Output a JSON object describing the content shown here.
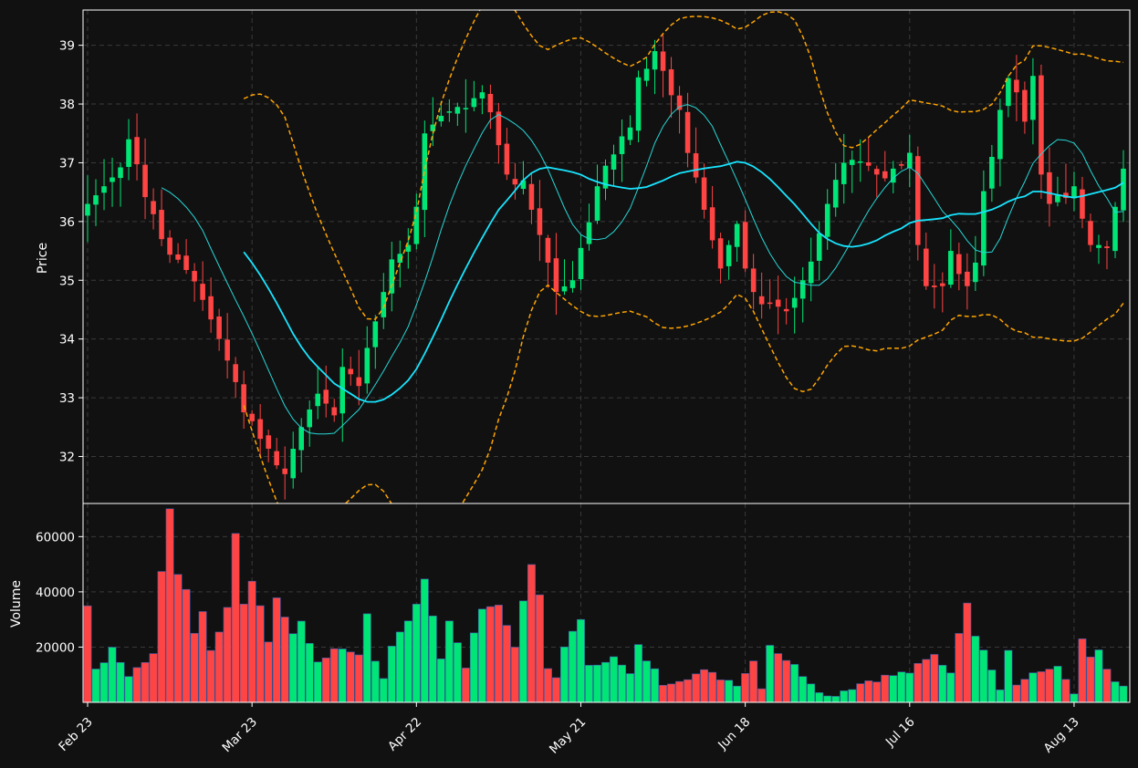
{
  "chart_data": {
    "type": "candlestick",
    "price_panel": {
      "ylabel": "Price",
      "yticks": [
        32,
        33,
        34,
        35,
        36,
        37,
        38,
        39
      ],
      "ylim": [
        31.2,
        39.6
      ]
    },
    "volume_panel": {
      "ylabel": "Volume",
      "yticks": [
        20000,
        40000,
        60000
      ],
      "ylim": [
        0,
        72000
      ]
    },
    "xaxis": {
      "tick_labels": [
        "Feb 23",
        "Mar 23",
        "Apr 22",
        "May 21",
        "Jun 18",
        "Jul 16",
        "Aug 13"
      ],
      "tick_index": [
        0,
        20,
        40,
        60,
        80,
        100,
        120
      ],
      "bar_count": 127
    },
    "colors": {
      "background": "#111111",
      "up": "#00e676",
      "down": "#ff4444",
      "ma_fast": "#26d7d7",
      "ma_slow": "#18e5ff",
      "bollinger": "#ffa500",
      "grid": "#3a3a3a"
    },
    "grid": true,
    "overlays": [
      "ma_fast",
      "ma_slow",
      "bollinger_upper",
      "bollinger_lower"
    ],
    "close_anchors": [
      [
        0,
        36.3
      ],
      [
        4,
        36.9
      ],
      [
        5,
        37.4
      ],
      [
        9,
        35.7
      ],
      [
        13,
        35.0
      ],
      [
        16,
        34.0
      ],
      [
        19,
        32.9
      ],
      [
        22,
        32.0
      ],
      [
        24,
        31.7
      ],
      [
        26,
        32.5
      ],
      [
        28,
        33.1
      ],
      [
        30,
        32.7
      ],
      [
        31,
        33.6
      ],
      [
        33,
        33.2
      ],
      [
        35,
        34.3
      ],
      [
        37,
        35.3
      ],
      [
        39,
        35.6
      ],
      [
        40,
        36.4
      ],
      [
        41,
        37.5
      ],
      [
        43,
        37.8
      ],
      [
        45,
        37.95
      ],
      [
        47,
        38.1
      ],
      [
        48,
        38.2
      ],
      [
        49,
        37.8
      ],
      [
        51,
        36.8
      ],
      [
        53,
        36.7
      ],
      [
        54,
        36.2
      ],
      [
        56,
        35.3
      ],
      [
        57,
        34.8
      ],
      [
        59,
        35.0
      ],
      [
        61,
        36.1
      ],
      [
        62,
        36.6
      ],
      [
        64,
        37.3
      ],
      [
        66,
        37.6
      ],
      [
        67,
        38.3
      ],
      [
        68,
        38.6
      ],
      [
        69,
        38.9
      ],
      [
        70,
        38.4
      ],
      [
        72,
        37.9
      ],
      [
        73,
        37.3
      ],
      [
        75,
        36.2
      ],
      [
        76,
        35.7
      ],
      [
        77,
        35.2
      ],
      [
        78,
        35.6
      ],
      [
        79,
        35.8
      ],
      [
        80,
        35.2
      ],
      [
        81,
        34.8
      ],
      [
        83,
        34.6
      ],
      [
        85,
        34.5
      ],
      [
        86,
        34.7
      ],
      [
        88,
        35.3
      ],
      [
        89,
        35.8
      ],
      [
        90,
        36.3
      ],
      [
        92,
        37.0
      ],
      [
        94,
        37.1
      ],
      [
        96,
        36.8
      ],
      [
        98,
        36.9
      ],
      [
        100,
        37.0
      ],
      [
        101,
        35.6
      ],
      [
        102,
        34.9
      ],
      [
        104,
        34.9
      ],
      [
        105,
        35.5
      ],
      [
        107,
        34.9
      ],
      [
        108,
        35.3
      ],
      [
        109,
        36.5
      ],
      [
        110,
        37.1
      ],
      [
        111,
        37.9
      ],
      [
        112,
        38.5
      ],
      [
        113,
        38.2
      ],
      [
        114,
        37.7
      ],
      [
        115,
        38.6
      ],
      [
        116,
        36.8
      ],
      [
        117,
        36.3
      ],
      [
        119,
        36.4
      ],
      [
        120,
        36.6
      ],
      [
        122,
        35.6
      ],
      [
        124,
        35.6
      ],
      [
        126,
        36.9
      ]
    ],
    "volume_anchors": [
      [
        0,
        36000
      ],
      [
        1,
        11000
      ],
      [
        3,
        19000
      ],
      [
        5,
        10000
      ],
      [
        8,
        17000
      ],
      [
        9,
        47000
      ],
      [
        10,
        71000
      ],
      [
        11,
        47000
      ],
      [
        12,
        41000
      ],
      [
        13,
        26000
      ],
      [
        14,
        34000
      ],
      [
        15,
        19000
      ],
      [
        16,
        25000
      ],
      [
        17,
        34000
      ],
      [
        18,
        60000
      ],
      [
        19,
        36000
      ],
      [
        20,
        44000
      ],
      [
        21,
        35000
      ],
      [
        22,
        22000
      ],
      [
        23,
        37000
      ],
      [
        25,
        25000
      ],
      [
        26,
        30000
      ],
      [
        28,
        14000
      ],
      [
        30,
        20000
      ],
      [
        33,
        16000
      ],
      [
        34,
        31000
      ],
      [
        35,
        14000
      ],
      [
        36,
        8000
      ],
      [
        37,
        20000
      ],
      [
        40,
        36000
      ],
      [
        41,
        45000
      ],
      [
        42,
        32000
      ],
      [
        43,
        16000
      ],
      [
        44,
        29000
      ],
      [
        45,
        21000
      ],
      [
        46,
        13000
      ],
      [
        48,
        35000
      ],
      [
        50,
        35000
      ],
      [
        52,
        21000
      ],
      [
        54,
        50000
      ],
      [
        55,
        38000
      ],
      [
        56,
        12000
      ],
      [
        57,
        9000
      ],
      [
        58,
        21000
      ],
      [
        60,
        29000
      ],
      [
        61,
        14000
      ],
      [
        64,
        16000
      ],
      [
        66,
        10000
      ],
      [
        67,
        20000
      ],
      [
        70,
        7000
      ],
      [
        75,
        11000
      ],
      [
        79,
        7000
      ],
      [
        81,
        15000
      ],
      [
        82,
        6000
      ],
      [
        83,
        21000
      ],
      [
        86,
        13000
      ],
      [
        90,
        2000
      ],
      [
        95,
        8000
      ],
      [
        100,
        11000
      ],
      [
        103,
        17000
      ],
      [
        105,
        11000
      ],
      [
        106,
        26000
      ],
      [
        107,
        35000
      ],
      [
        108,
        25000
      ],
      [
        109,
        20000
      ],
      [
        111,
        5000
      ],
      [
        112,
        20000
      ],
      [
        113,
        6000
      ],
      [
        115,
        11000
      ],
      [
        117,
        11000
      ],
      [
        118,
        13000
      ],
      [
        120,
        4000
      ],
      [
        121,
        22000
      ],
      [
        122,
        16000
      ],
      [
        123,
        19000
      ],
      [
        124,
        11000
      ],
      [
        125,
        7000
      ],
      [
        126,
        6000
      ]
    ]
  }
}
